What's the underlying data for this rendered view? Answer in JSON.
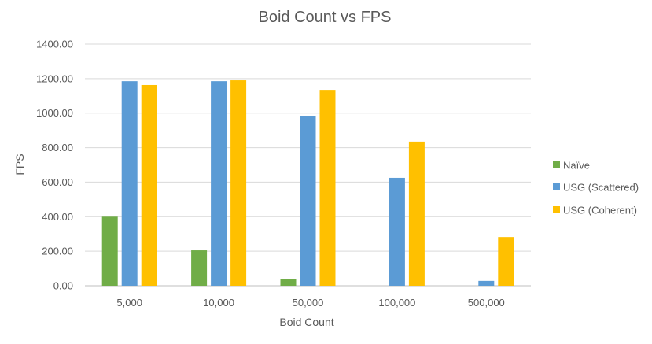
{
  "chart_data": {
    "type": "bar",
    "title": "Boid Count vs FPS",
    "xlabel": "Boid Count",
    "ylabel": "FPS",
    "categories": [
      "5,000",
      "10,000",
      "50,000",
      "100,000",
      "500,000"
    ],
    "ylim": [
      0,
      1400
    ],
    "yticks": [
      0,
      200,
      400,
      600,
      800,
      1000,
      1200,
      1400
    ],
    "ytick_labels": [
      "0.00",
      "200.00",
      "400.00",
      "600.00",
      "800.00",
      "1000.00",
      "1200.00",
      "1400.00"
    ],
    "grid": true,
    "legend_position": "right",
    "series": [
      {
        "name": "Naïve",
        "color": "#70ad47",
        "values": [
          400,
          205,
          38,
          null,
          null
        ]
      },
      {
        "name": "USG (Scattered)",
        "color": "#5b9bd5",
        "values": [
          1185,
          1185,
          985,
          625,
          28
        ]
      },
      {
        "name": "USG (Coherent)",
        "color": "#ffc000",
        "values": [
          1163,
          1190,
          1135,
          835,
          282
        ]
      }
    ]
  }
}
